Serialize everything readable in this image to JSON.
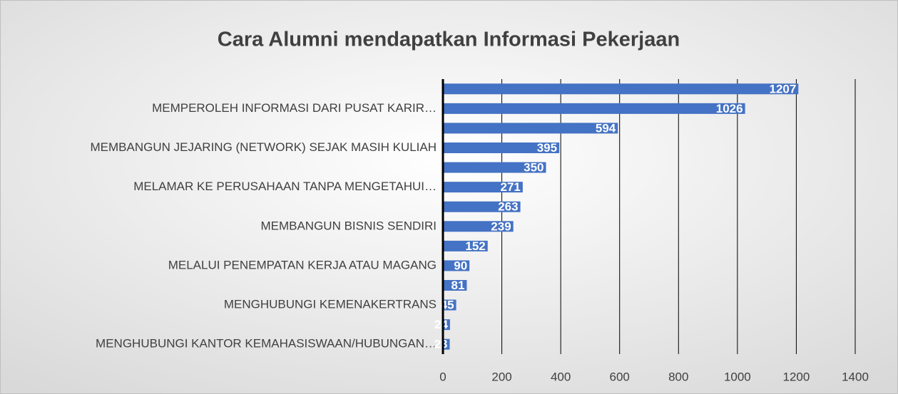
{
  "chart_data": {
    "type": "barh",
    "title": "Cara Alumni mendapatkan Informasi Pekerjaan",
    "categories": [
      null,
      "MEMPEROLEH INFORMASI DARI PUSAT KARIR…",
      null,
      "MEMBANGUN JEJARING (NETWORK) SEJAK MASIH KULIAH",
      null,
      "MELAMAR KE PERUSAHAAN TANPA MENGETAHUI…",
      null,
      "MEMBANGUN BISNIS SENDIRI",
      null,
      "MELALUI PENEMPATAN KERJA ATAU MAGANG",
      null,
      "MENGHUBUNGI KEMENAKERTRANS",
      null,
      "MENGHUBUNGI KANTOR KEMAHASISWAAN/HUBUNGAN…"
    ],
    "values": [
      1207,
      1026,
      594,
      395,
      350,
      271,
      263,
      239,
      152,
      90,
      81,
      45,
      24,
      23
    ],
    "color": "#4472c4",
    "xlim": [
      0,
      1400
    ],
    "xticks": [
      0,
      200,
      400,
      600,
      800,
      1000,
      1200,
      1400
    ],
    "grid": true
  }
}
